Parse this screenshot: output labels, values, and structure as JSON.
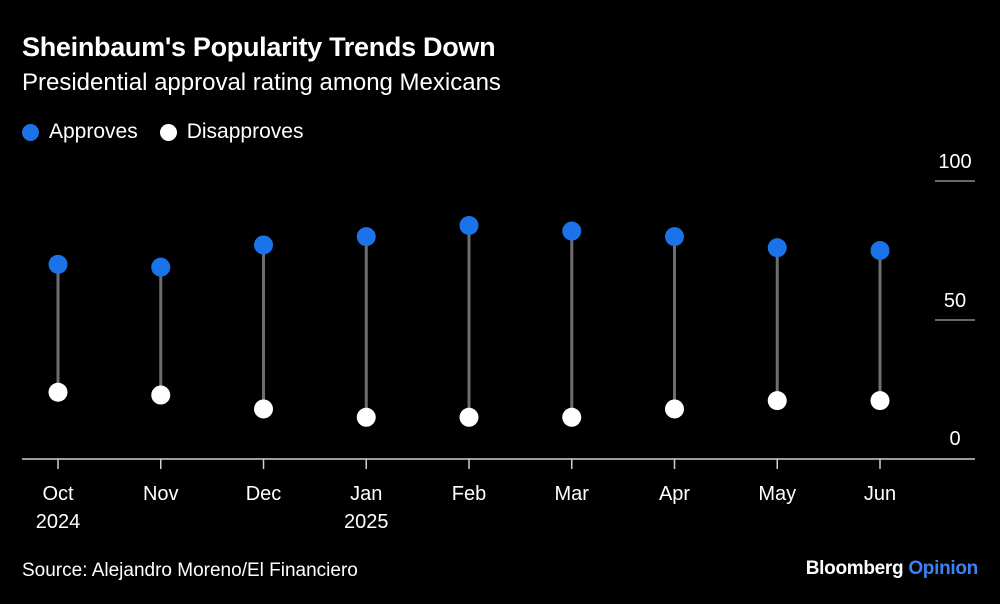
{
  "header": {
    "title": "Sheinbaum's Popularity Trends Down",
    "subtitle": "Presidential approval rating among Mexicans"
  },
  "legend": [
    {
      "label": "Approves",
      "color": "#1a73e8"
    },
    {
      "label": "Disapproves",
      "color": "#ffffff"
    }
  ],
  "footer": {
    "source": "Source: Alejandro Moreno/El Financiero",
    "brand_main": "Bloomberg",
    "brand_sub": "Opinion"
  },
  "chart_data": {
    "type": "dumbbell",
    "categories": [
      "Oct",
      "Nov",
      "Dec",
      "Jan",
      "Feb",
      "Mar",
      "Apr",
      "May",
      "Jun"
    ],
    "category_sublabels": [
      "2024",
      "",
      "",
      "2025",
      "",
      "",
      "",
      "",
      ""
    ],
    "series": [
      {
        "name": "Approves",
        "color": "#1a73e8",
        "values": [
          70,
          69,
          77,
          80,
          84,
          82,
          80,
          76,
          75
        ]
      },
      {
        "name": "Disapproves",
        "color": "#ffffff",
        "values": [
          24,
          23,
          18,
          15,
          15,
          15,
          18,
          21,
          21
        ]
      }
    ],
    "ylim": [
      0,
      100
    ],
    "yticks": [
      0,
      50,
      100
    ],
    "yaxis_position": "right",
    "connector_color": "#6e6e6e"
  }
}
